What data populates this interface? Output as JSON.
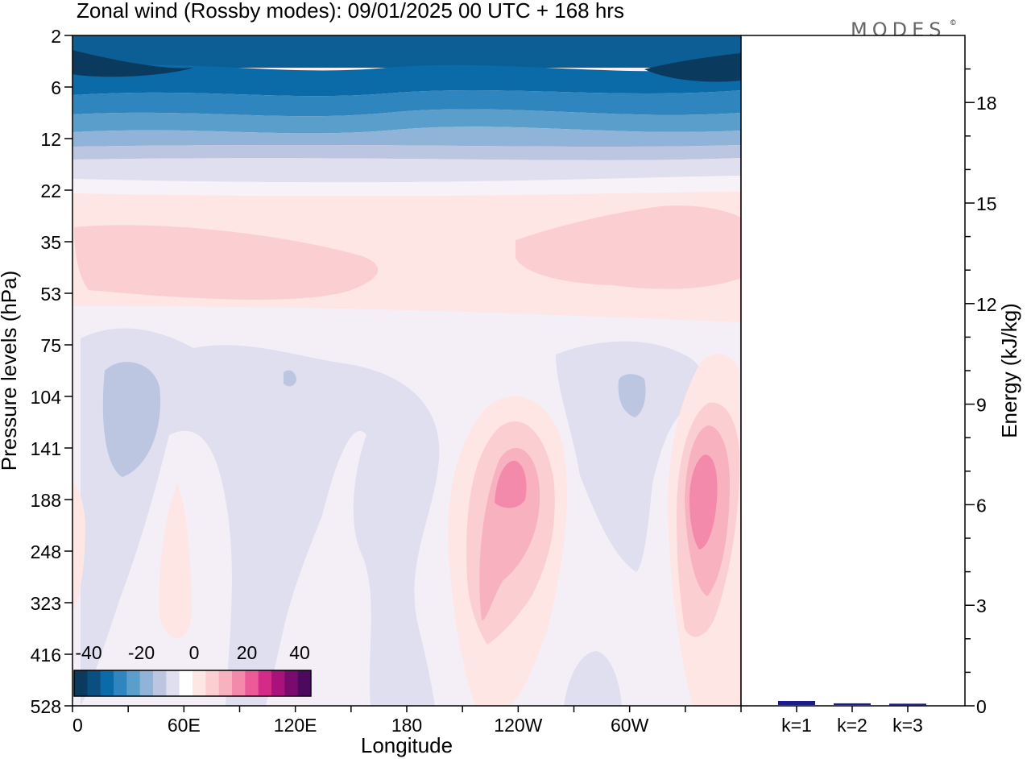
{
  "watermark": "MODES",
  "watermark_mark": "©",
  "chart_data": {
    "type": "heatmap",
    "title": "Zonal wind (Rossby modes):  09/01/2025  00 UTC  + 168 hrs",
    "xlabel": "Longitude",
    "ylabel": "Pressure levels (hPa)",
    "x_ticks": [
      "0",
      "60E",
      "120E",
      "180",
      "120W",
      "60W"
    ],
    "y_levels": [
      "2",
      "6",
      "12",
      "22",
      "35",
      "53",
      "75",
      "104",
      "141",
      "188",
      "248",
      "323",
      "416",
      "528"
    ],
    "colorbar": {
      "labels": [
        "-40",
        "-20",
        "0",
        "20",
        "40"
      ],
      "colors": [
        "#0a3a5e",
        "#0b4f80",
        "#0b6aa8",
        "#2f85bd",
        "#5a9ecb",
        "#8fb4d8",
        "#bdc6e1",
        "#e0dff0",
        "#ffffff",
        "#fde6e4",
        "#fbcfd1",
        "#f8b1bf",
        "#f48aab",
        "#ec5b98",
        "#d52b88",
        "#a8127a",
        "#7a0b6e",
        "#4b0a5e"
      ]
    },
    "bar_panel": {
      "type": "bar",
      "categories": [
        "k=1",
        "k=2",
        "k=3"
      ],
      "values": [
        0.12,
        0.05,
        0.04
      ],
      "ylabel": "Energy (kJ/kg)",
      "ylim": [
        0,
        20
      ],
      "y_ticks": [
        "0",
        "3",
        "6",
        "9",
        "12",
        "15",
        "18"
      ],
      "bar_colors": [
        "#1b1b8a",
        "#1b1b8a",
        "#1b1b8a"
      ]
    }
  }
}
